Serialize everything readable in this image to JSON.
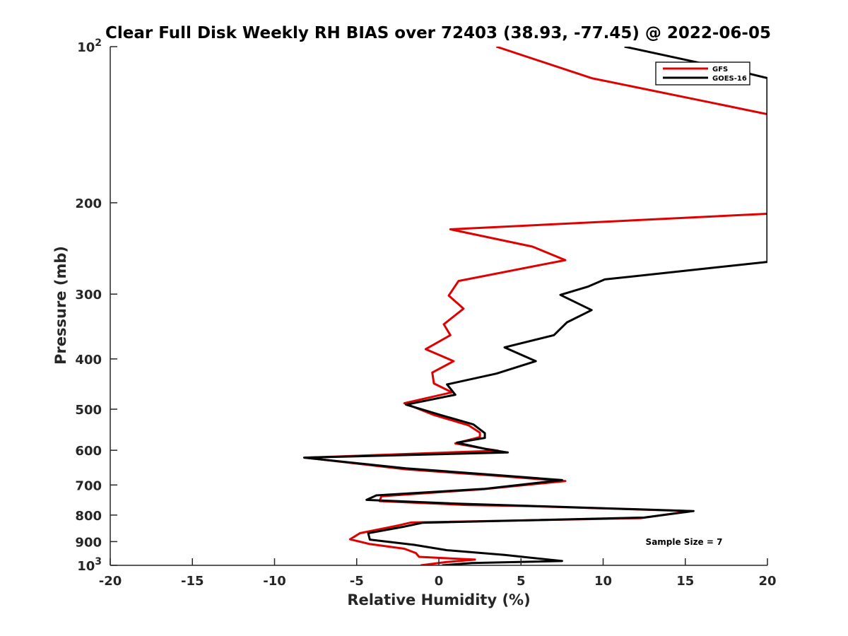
{
  "chart_data": {
    "type": "line",
    "title": "Clear Full Disk Weekly RH BIAS over 72403 (38.93, -77.45) @ 2022-06-05",
    "xlabel": "Relative Humidity (%)",
    "ylabel": "Pressure (mb)",
    "xlim": [
      -20,
      20
    ],
    "ylim": [
      100,
      1000
    ],
    "y_scale": "log",
    "y_reversed": true,
    "grid": false,
    "legend_position": "top-right",
    "x_ticks": [
      "-20",
      "-15",
      "-10",
      "-5",
      "0",
      "5",
      "10",
      "15",
      "20"
    ],
    "y_ticks": [
      {
        "value": 100,
        "label": "10",
        "sup": "2"
      },
      {
        "value": 200,
        "label": "200",
        "sup": ""
      },
      {
        "value": 300,
        "label": "300",
        "sup": ""
      },
      {
        "value": 400,
        "label": "400",
        "sup": ""
      },
      {
        "value": 500,
        "label": "500",
        "sup": ""
      },
      {
        "value": 600,
        "label": "600",
        "sup": ""
      },
      {
        "value": 700,
        "label": "700",
        "sup": ""
      },
      {
        "value": 800,
        "label": "800",
        "sup": ""
      },
      {
        "value": 900,
        "label": "900",
        "sup": ""
      },
      {
        "value": 1000,
        "label": "10",
        "sup": "3"
      }
    ],
    "series": [
      {
        "name": "GFS",
        "color": "#e00000",
        "points": [
          [
            3.5,
            100
          ],
          [
            9.3,
            115
          ],
          [
            17.5,
            130
          ],
          [
            20,
            135
          ],
          [
            20,
            210
          ],
          [
            0.7,
            225
          ],
          [
            5.7,
            243
          ],
          [
            7.7,
            258
          ],
          [
            1.2,
            283
          ],
          [
            0.6,
            302
          ],
          [
            1.5,
            320
          ],
          [
            0.3,
            343
          ],
          [
            0.7,
            360
          ],
          [
            -0.8,
            383
          ],
          [
            0.9,
            404
          ],
          [
            -0.4,
            425
          ],
          [
            -0.3,
            446
          ],
          [
            0.8,
            464
          ],
          [
            -2.1,
            487
          ],
          [
            -0.3,
            513
          ],
          [
            1.8,
            537
          ],
          [
            2.5,
            555
          ],
          [
            2.5,
            566
          ],
          [
            1.0,
            582
          ],
          [
            2.8,
            596
          ],
          [
            3.6,
            601
          ],
          [
            -8.1,
            620
          ],
          [
            -2.0,
            653
          ],
          [
            3.5,
            672
          ],
          [
            7.7,
            688
          ],
          [
            2.7,
            713
          ],
          [
            -3.5,
            736
          ],
          [
            -3.6,
            752
          ],
          [
            1.7,
            765
          ],
          [
            5.6,
            769
          ],
          [
            15.3,
            786
          ],
          [
            12.3,
            811
          ],
          [
            -1.7,
            827
          ],
          [
            -2.5,
            838
          ],
          [
            -4.8,
            867
          ],
          [
            -5.4,
            891
          ],
          [
            -4.2,
            910
          ],
          [
            -2.1,
            929
          ],
          [
            -1.4,
            947
          ],
          [
            -1.2,
            963
          ],
          [
            2.2,
            975
          ],
          [
            0.4,
            986
          ],
          [
            -1.1,
            1000
          ]
        ]
      },
      {
        "name": "GOES-16",
        "color": "#000000",
        "points": [
          [
            11.3,
            100
          ],
          [
            18.5,
            112
          ],
          [
            20,
            115
          ],
          [
            20,
            260
          ],
          [
            10.1,
            281
          ],
          [
            9.1,
            290
          ],
          [
            7.4,
            301
          ],
          [
            9.3,
            322
          ],
          [
            7.8,
            340
          ],
          [
            7.0,
            360
          ],
          [
            4.0,
            380
          ],
          [
            5.9,
            404
          ],
          [
            3.5,
            427
          ],
          [
            0.5,
            448
          ],
          [
            1.0,
            469
          ],
          [
            -2.0,
            490
          ],
          [
            0,
            512
          ],
          [
            2.1,
            535
          ],
          [
            2.8,
            556
          ],
          [
            2.8,
            568
          ],
          [
            1.1,
            580
          ],
          [
            2.9,
            597
          ],
          [
            4.2,
            606
          ],
          [
            -8.2,
            620
          ],
          [
            -2.0,
            650
          ],
          [
            3.5,
            670
          ],
          [
            7.5,
            685
          ],
          [
            2.8,
            712
          ],
          [
            -3.8,
            733
          ],
          [
            -4.4,
            748
          ],
          [
            1.3,
            761
          ],
          [
            5.5,
            768
          ],
          [
            15.5,
            786
          ],
          [
            12.5,
            809
          ],
          [
            -1.0,
            828
          ],
          [
            -2.2,
            843
          ],
          [
            -4.3,
            867
          ],
          [
            -4.2,
            892
          ],
          [
            -1.5,
            913
          ],
          [
            0.5,
            935
          ],
          [
            4.0,
            955
          ],
          [
            7.5,
            981
          ],
          [
            2.0,
            990
          ],
          [
            0.2,
            1000
          ]
        ]
      }
    ],
    "annotation": "Sample Size = 7"
  }
}
